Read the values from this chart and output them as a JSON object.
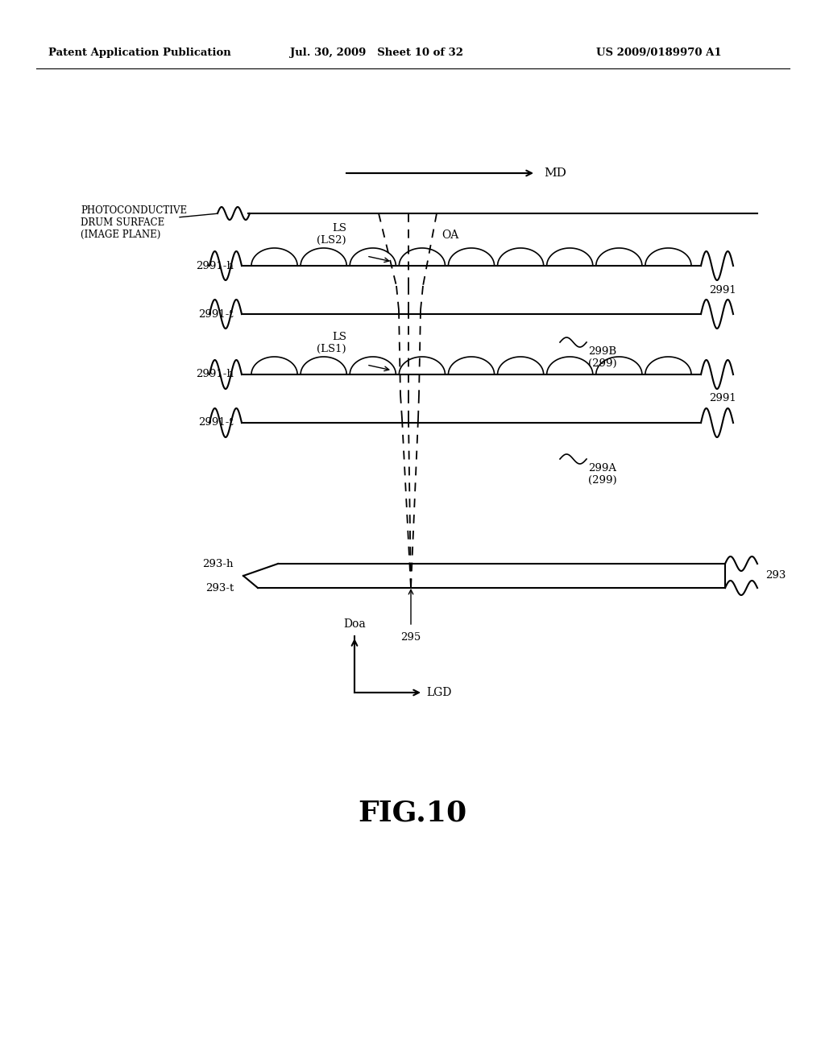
{
  "bg_color": "#ffffff",
  "header_left": "Patent Application Publication",
  "header_mid": "Jul. 30, 2009   Sheet 10 of 32",
  "header_right": "US 2009/0189970 A1",
  "fig_label": "FIG.10",
  "md_arrow_label": "MD",
  "oa_label": "OA",
  "ls2_label": "LS\n(LS2)",
  "ls1_label": "LS\n(LS1)",
  "label_2991_upper": "2991",
  "label_2991h_upper": "2991-h",
  "label_2991t_upper": "2991-t",
  "label_299B": "299B\n(299)",
  "label_2991_lower": "2991",
  "label_2991h_lower": "2991-h",
  "label_2991t_lower": "2991-t",
  "label_299A": "299A\n(299)",
  "label_293": "293",
  "label_293h": "293-h",
  "label_293t": "293-t",
  "label_295": "295",
  "label_photo": "PHOTOCONDUCTIVE\nDRUM SURFACE\n(IMAGE PLANE)",
  "doa_label": "Doa",
  "lgd_label": "LGD",
  "line_color": "#000000",
  "dashed_color": "#000000"
}
